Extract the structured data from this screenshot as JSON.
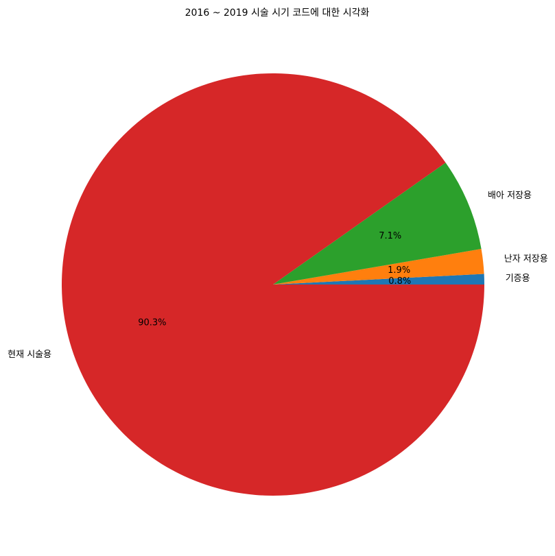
{
  "chart_data": {
    "type": "pie",
    "title": "2016 ~ 2019 시술 시기 코드에 대한 시각화",
    "start_angle_deg": 0,
    "direction": "counterclockwise",
    "slices": [
      {
        "label": "기증용",
        "value": 0.8,
        "pct_label": "0.8%",
        "color": "#1f77b4"
      },
      {
        "label": "난자 저장용",
        "value": 1.9,
        "pct_label": "1.9%",
        "color": "#ff7f0e"
      },
      {
        "label": "배아 저장용",
        "value": 7.1,
        "pct_label": "7.1%",
        "color": "#2ca02c"
      },
      {
        "label": "현재 시술용",
        "value": 90.3,
        "pct_label": "90.3%",
        "color": "#d62728"
      }
    ]
  }
}
